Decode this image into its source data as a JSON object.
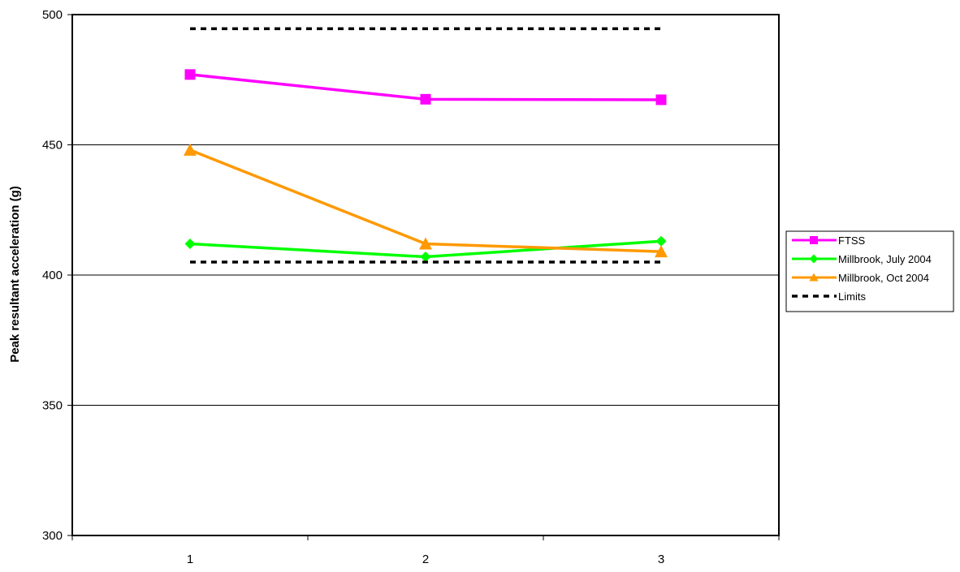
{
  "chart_data": {
    "type": "line",
    "title": "",
    "xlabel": "",
    "ylabel": "Peak resultant acceleration (g)",
    "categories": [
      "1",
      "2",
      "3"
    ],
    "ylim": [
      300,
      500
    ],
    "yticks": [
      300,
      350,
      400,
      450,
      500
    ],
    "grid": true,
    "legend_position": "right",
    "series": [
      {
        "name": "FTSS",
        "values": [
          477,
          467.5,
          467.3
        ],
        "color": "#FF00FF",
        "marker": "square"
      },
      {
        "name": "Millbrook, July 2004",
        "values": [
          412,
          407,
          413
        ],
        "color": "#00FF00",
        "marker": "diamond"
      },
      {
        "name": "Millbrook, Oct 2004",
        "values": [
          448,
          412,
          409
        ],
        "color": "#FF9900",
        "marker": "triangle"
      },
      {
        "name": "Limits",
        "values": [
          494.6,
          494.6,
          494.6
        ],
        "values_lower": [
          405,
          405,
          405
        ],
        "color": "#000000",
        "marker": "none",
        "dashed": true
      }
    ]
  }
}
